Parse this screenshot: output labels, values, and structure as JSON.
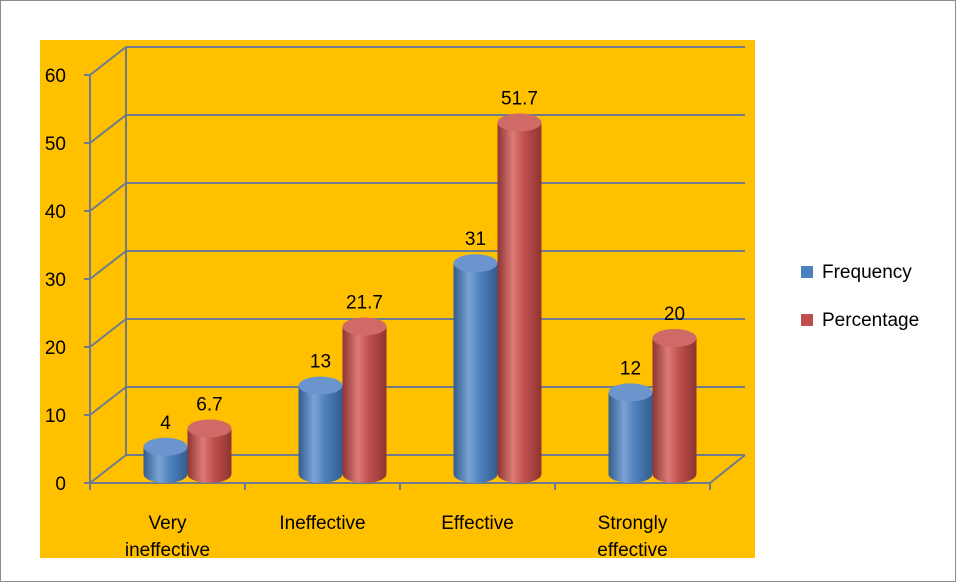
{
  "chart_data": {
    "type": "bar",
    "categories": [
      [
        "Very",
        "ineffective"
      ],
      [
        "Ineffective"
      ],
      [
        "Effective"
      ],
      [
        "Strongly",
        "effective"
      ]
    ],
    "series": [
      {
        "name": "Frequency",
        "values": [
          4,
          13,
          31,
          12
        ],
        "labels": [
          "4",
          "13",
          "31",
          "12"
        ],
        "color": "#4F81BD"
      },
      {
        "name": "Percentage",
        "values": [
          6.7,
          21.7,
          51.7,
          20
        ],
        "labels": [
          "6.7",
          "21.7",
          "51.7",
          "20"
        ],
        "color": "#C0504D"
      }
    ],
    "yticks": [
      "0",
      "10",
      "20",
      "30",
      "40",
      "50",
      "60"
    ],
    "ylim": [
      0,
      60
    ],
    "grid": true,
    "legend": "right",
    "style": "3d-cylinder",
    "plot_background": "#FFC000",
    "colors": {
      "plot_background": "#FFC000",
      "gridline": "#6d7b8d"
    }
  }
}
